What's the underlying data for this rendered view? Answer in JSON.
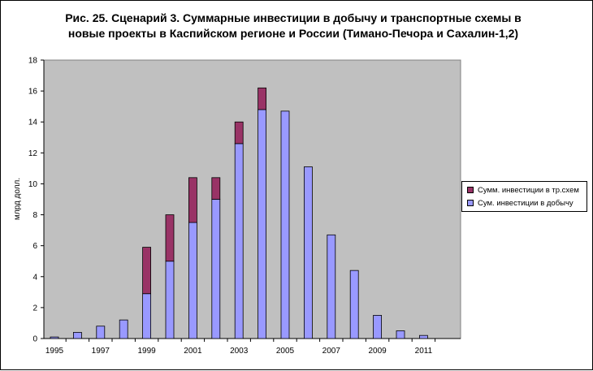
{
  "chart_data": {
    "type": "bar",
    "stacked": true,
    "title": "Рис. 25. Сценарий 3. Суммарные инвестиции в добычу и транспортные схемы в новые проекты в Каспийском регионе и России (Тимано-Печора и Сахалин-1,2)",
    "ylabel": "млрд долл.",
    "xlabel": "",
    "ylim": [
      0,
      18
    ],
    "yticks": [
      "0",
      "2",
      "4",
      "6",
      "8",
      "10",
      "12",
      "14",
      "16",
      "18"
    ],
    "x": [
      "1995",
      "1996",
      "1997",
      "1998",
      "1999",
      "2000",
      "2001",
      "2002",
      "2003",
      "2004",
      "2005",
      "2006",
      "2007",
      "2008",
      "2009",
      "2010",
      "2011"
    ],
    "xtick_labels": [
      "1995",
      "",
      "1997",
      "",
      "1999",
      "",
      "2001",
      "",
      "2003",
      "",
      "2005",
      "",
      "2007",
      "",
      "2009",
      "",
      "2011"
    ],
    "series": [
      {
        "name": "Сум. инвестиции в добычу",
        "color": "#9999FF",
        "values": [
          0.1,
          0.4,
          0.8,
          1.2,
          2.9,
          5.0,
          7.5,
          9.0,
          12.6,
          14.8,
          14.7,
          11.1,
          6.7,
          4.4,
          1.5,
          0.5,
          0.2
        ]
      },
      {
        "name": "Сумм. инвестиции в тр.схем",
        "color": "#993366",
        "values": [
          0,
          0,
          0,
          0,
          3.0,
          3.0,
          2.9,
          1.4,
          1.4,
          1.4,
          0,
          0,
          0,
          0,
          0,
          0,
          0
        ]
      }
    ],
    "grid": false,
    "legend_position": "right",
    "plot_background": "#C0C0C0"
  }
}
